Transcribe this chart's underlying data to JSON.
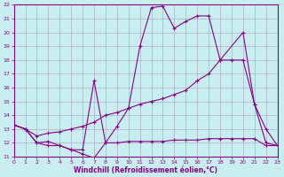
{
  "xlabel": "Windchill (Refroidissement éolien,°C)",
  "bg_color": "#c8eef0",
  "grid_color": "#b0b0cc",
  "line_color": "#880088",
  "xlim": [
    0,
    23
  ],
  "ylim": [
    11,
    22
  ],
  "xticks": [
    0,
    1,
    2,
    3,
    4,
    5,
    6,
    7,
    8,
    9,
    10,
    11,
    12,
    13,
    14,
    15,
    16,
    17,
    18,
    19,
    20,
    21,
    22,
    23
  ],
  "yticks": [
    11,
    12,
    13,
    14,
    15,
    16,
    17,
    18,
    19,
    20,
    21,
    22
  ],
  "series1_x": [
    0,
    1,
    2,
    3,
    4,
    5,
    6,
    7,
    8,
    9,
    10,
    11,
    12,
    13,
    14,
    15,
    16,
    17,
    18,
    20,
    21,
    22,
    23
  ],
  "series1_y": [
    13.3,
    13.0,
    12.0,
    12.1,
    11.8,
    11.5,
    11.5,
    16.5,
    12.0,
    13.2,
    14.5,
    19.0,
    21.8,
    21.9,
    20.3,
    20.8,
    21.2,
    21.2,
    18.0,
    20.0,
    14.8,
    13.0,
    11.8
  ],
  "series2_x": [
    0,
    1,
    2,
    3,
    4,
    5,
    6,
    7,
    8,
    9,
    10,
    11,
    12,
    13,
    14,
    15,
    16,
    17,
    18,
    19,
    20,
    21,
    22,
    23
  ],
  "series2_y": [
    13.3,
    13.0,
    12.5,
    12.7,
    12.8,
    13.0,
    13.2,
    13.5,
    14.0,
    14.2,
    14.5,
    14.8,
    15.0,
    15.2,
    15.5,
    15.8,
    16.5,
    17.0,
    18.0,
    18.0,
    18.0,
    14.8,
    12.0,
    11.8
  ],
  "series3_x": [
    0,
    1,
    2,
    3,
    4,
    5,
    6,
    7,
    8,
    9,
    10,
    11,
    12,
    13,
    14,
    15,
    16,
    17,
    18,
    19,
    20,
    21,
    22,
    23
  ],
  "series3_y": [
    13.3,
    13.0,
    12.0,
    11.8,
    11.8,
    11.5,
    11.2,
    10.9,
    12.0,
    12.0,
    12.1,
    12.1,
    12.1,
    12.1,
    12.2,
    12.2,
    12.2,
    12.3,
    12.3,
    12.3,
    12.3,
    12.3,
    11.8,
    11.8
  ]
}
